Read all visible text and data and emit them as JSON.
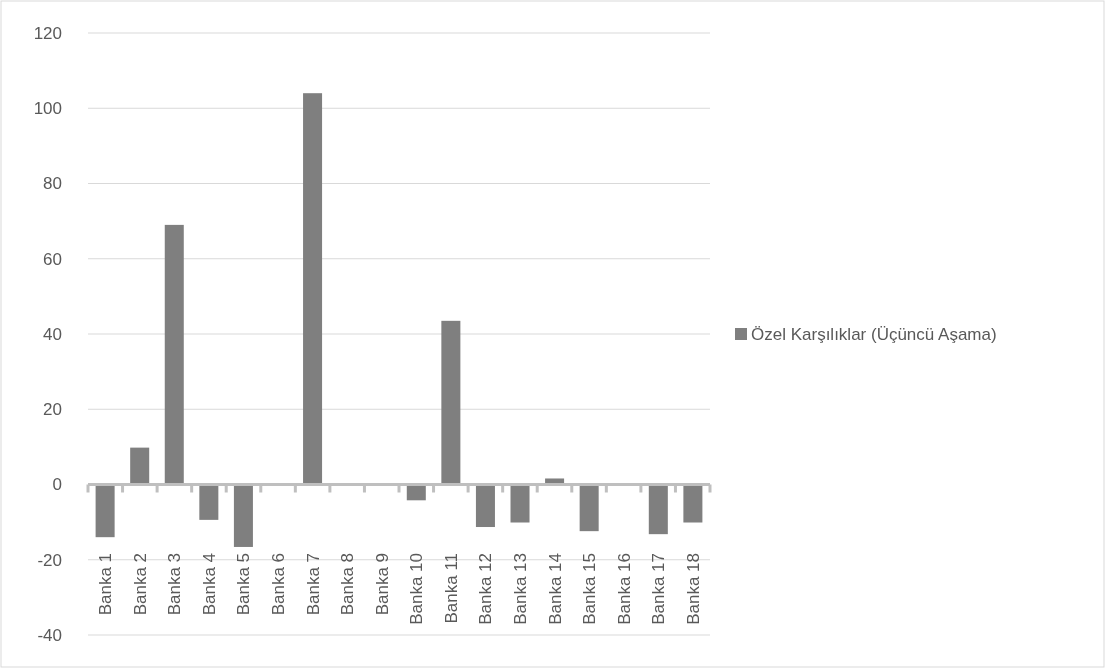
{
  "chart_data": {
    "type": "bar",
    "categories": [
      "Banka 1",
      "Banka 2",
      "Banka 3",
      "Banka 4",
      "Banka 5",
      "Banka 6",
      "Banka 7",
      "Banka 8",
      "Banka 9",
      "Banka 10",
      "Banka 11",
      "Banka 12",
      "Banka 13",
      "Banka 14",
      "Banka 15",
      "Banka 16",
      "Banka 17",
      "Banka 18"
    ],
    "series": [
      {
        "name": "Özel Karşılıklar (Üçüncü Aşama)",
        "color": "#7f7f7f",
        "values": [
          -14,
          9.8,
          69,
          -9.4,
          -16.6,
          null,
          104,
          0,
          0,
          -4.2,
          43.5,
          -11.3,
          -10.1,
          1.6,
          -12.4,
          0,
          -13.2,
          -10.1
        ]
      }
    ],
    "ylim": [
      -40,
      120
    ],
    "yticks": [
      -40,
      -20,
      0,
      20,
      40,
      60,
      80,
      100,
      120
    ],
    "grid": "y",
    "legend": "right"
  }
}
